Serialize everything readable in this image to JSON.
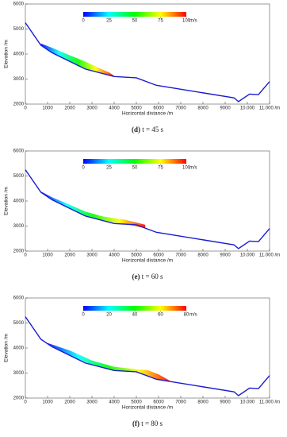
{
  "chart_data": [
    {
      "type": "line",
      "caption_label": "(d)",
      "caption": "t = 45 s",
      "x_label": "Horizontal distance /m",
      "y_label": "Elevation /m",
      "xlim": [
        0,
        11000
      ],
      "ylim": [
        2000,
        6000
      ],
      "xticks": [
        0,
        1000,
        2000,
        3000,
        4000,
        5000,
        6000,
        7000,
        8000,
        9000,
        {
          "value": 10000,
          "label": "10.000"
        },
        {
          "value": 11000,
          "label": "11.000 /m"
        }
      ],
      "yticks": [
        2000,
        3000,
        4000,
        5000,
        6000
      ],
      "series": [
        {
          "color": "#1a1ad0",
          "x": [
            0,
            700,
            1200,
            2700,
            4000,
            5000,
            5900,
            9400,
            9600,
            10100,
            10500,
            11000
          ],
          "values": [
            5250,
            4350,
            4050,
            3400,
            3100,
            3050,
            2750,
            2250,
            2100,
            2400,
            2380,
            2900
          ]
        },
        {
          "x": [
            700,
            1200,
            2000,
            2700,
            3300,
            3800,
            4000
          ],
          "values": [
            4420,
            4250,
            3950,
            3700,
            3450,
            3250,
            3130
          ]
        }
      ],
      "colorbar": {
        "lim": [
          0,
          100
        ],
        "ticks": [
          0,
          25,
          50,
          75,
          100
        ],
        "unit": "m/s",
        "colormap": [
          "#0000ff",
          "#00ffff",
          "#00ff00",
          "#ffff00",
          "#ff0000"
        ]
      }
    },
    {
      "type": "line",
      "caption_label": "(e)",
      "caption": "t = 60 s",
      "x_label": "Horizontal distance /m",
      "y_label": "Elevation /m",
      "xlim": [
        0,
        11000
      ],
      "ylim": [
        2000,
        6000
      ],
      "xticks": [
        0,
        1000,
        2000,
        3000,
        4000,
        5000,
        6000,
        7000,
        8000,
        9000,
        {
          "value": 10000,
          "label": "10.000"
        },
        {
          "value": 11000,
          "label": "11.000 /m"
        }
      ],
      "yticks": [
        2000,
        3000,
        4000,
        5000,
        6000
      ],
      "series": [
        {
          "color": "#1a1ad0",
          "x": [
            0,
            700,
            1200,
            2700,
            4000,
            5000,
            5900,
            9400,
            9600,
            10100,
            10500,
            11000
          ],
          "values": [
            5250,
            4350,
            4050,
            3400,
            3100,
            3050,
            2750,
            2250,
            2100,
            2400,
            2380,
            2900
          ]
        },
        {
          "x": [
            700,
            1200,
            2000,
            2700,
            3500,
            4500,
            5400
          ],
          "values": [
            4380,
            4150,
            3850,
            3580,
            3380,
            3250,
            3050
          ]
        }
      ],
      "colorbar": {
        "lim": [
          0,
          100
        ],
        "ticks": [
          0,
          25,
          50,
          75,
          100
        ],
        "unit": "m/s",
        "colormap": [
          "#0000ff",
          "#00ffff",
          "#00ff00",
          "#ffff00",
          "#ff0000"
        ]
      }
    },
    {
      "type": "line",
      "caption_label": "(f)",
      "caption": "t = 80 s",
      "x_label": "Horizontal distance /m",
      "y_label": "Elevation /m",
      "xlim": [
        0,
        11000
      ],
      "ylim": [
        2000,
        6000
      ],
      "xticks": [
        0,
        1000,
        2000,
        3000,
        4000,
        5000,
        6000,
        7000,
        8000,
        9000,
        {
          "value": 10000,
          "label": "10.000"
        },
        {
          "value": 11000,
          "label": "11.000 /m"
        }
      ],
      "yticks": [
        2000,
        3000,
        4000,
        5000,
        6000
      ],
      "series": [
        {
          "color": "#1a1ad0",
          "x": [
            0,
            700,
            1200,
            2700,
            4000,
            5000,
            5900,
            9400,
            9600,
            10100,
            10500,
            11000
          ],
          "values": [
            5250,
            4350,
            4050,
            3400,
            3100,
            3050,
            2750,
            2250,
            2100,
            2400,
            2380,
            2900
          ]
        },
        {
          "x": [
            1000,
            2000,
            3000,
            4000,
            5000,
            5500,
            6000,
            6500
          ],
          "values": [
            4200,
            3900,
            3500,
            3250,
            3150,
            3120,
            2950,
            2700
          ]
        }
      ],
      "colorbar": {
        "lim": [
          0,
          80
        ],
        "ticks": [
          0,
          20,
          40,
          60,
          80
        ],
        "unit": "m/s",
        "colormap": [
          "#0000ff",
          "#00ffff",
          "#00ff00",
          "#ffff00",
          "#ff0000"
        ]
      }
    }
  ]
}
